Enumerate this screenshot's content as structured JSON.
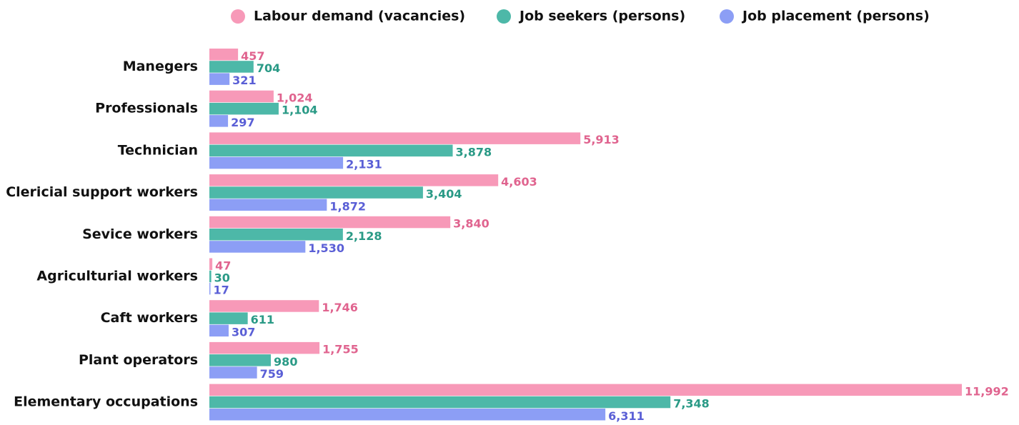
{
  "chart_data": {
    "type": "barh",
    "categories": [
      "Manegers",
      "Professionals",
      "Technician",
      "Clericial support workers",
      "Sevice workers",
      "Agriculturial workers",
      "Caft workers",
      "Plant operators",
      "Elementary occupations"
    ],
    "series": [
      {
        "name": "Labour demand (vacancies)",
        "color": "#f799b8",
        "label_color": "#e0648f",
        "values": [
          457,
          1024,
          5913,
          4603,
          3840,
          47,
          1746,
          1755,
          11992
        ],
        "value_labels": [
          "457",
          "1,024",
          "5,913",
          "4,603",
          "3,840",
          "47",
          "1,746",
          "1,755",
          "11,992"
        ]
      },
      {
        "name": "Job seekers (persons)",
        "color": "#4db8a8",
        "label_color": "#2a9a86",
        "values": [
          704,
          1104,
          3878,
          3404,
          2128,
          30,
          611,
          980,
          7348
        ],
        "value_labels": [
          "704",
          "1,104",
          "3,878",
          "3,404",
          "2,128",
          "30",
          "611",
          "980",
          "7,348"
        ]
      },
      {
        "name": "Job placement (persons)",
        "color": "#8c9ef5",
        "label_color": "#5a5fd6",
        "values": [
          321,
          297,
          2131,
          1872,
          1530,
          17,
          307,
          759,
          6311
        ],
        "value_labels": [
          "321",
          "297",
          "2,131",
          "1,872",
          "1,530",
          "17",
          "307",
          "759",
          "6,311"
        ]
      }
    ],
    "legend": "top"
  }
}
